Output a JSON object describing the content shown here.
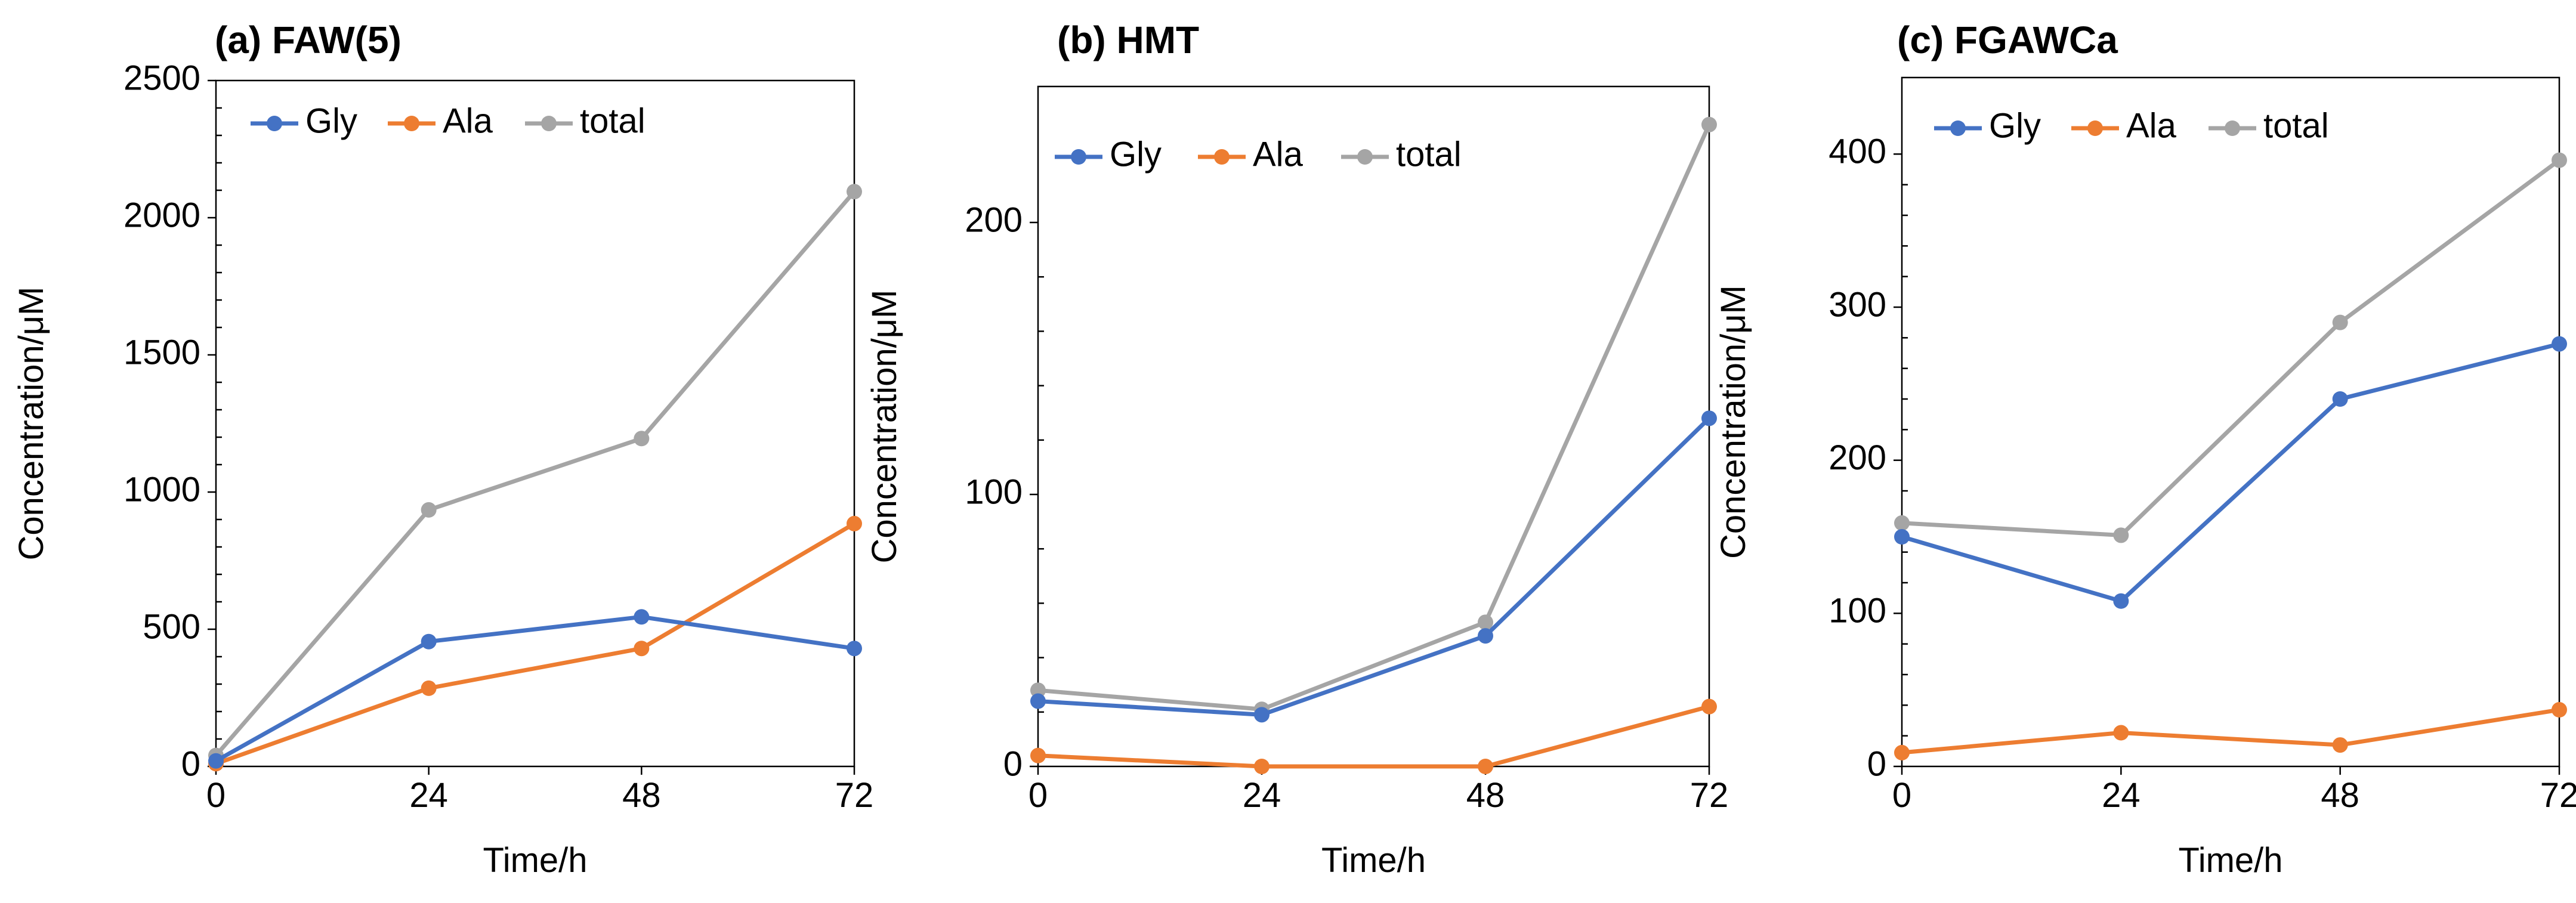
{
  "chart_data": [
    {
      "type": "line",
      "title": "(a) FAW(5)",
      "xlabel": "Time/h",
      "ylabel": "Concentration/μM",
      "x": [
        0,
        24,
        48,
        72
      ],
      "xticks": [
        "0",
        "24",
        "48",
        "72"
      ],
      "xlim": [
        0,
        72
      ],
      "ylim": [
        0,
        2500
      ],
      "yticks": [
        "0",
        "500",
        "1000",
        "1500",
        "2000",
        "2500"
      ],
      "grid": false,
      "legend": "top-left",
      "series": [
        {
          "name": "Gly",
          "color": "#4472C4",
          "values": [
            20,
            455,
            545,
            430
          ]
        },
        {
          "name": "Ala",
          "color": "#ED7D31",
          "values": [
            10,
            285,
            430,
            885
          ]
        },
        {
          "name": "total",
          "color": "#A5A5A5",
          "values": [
            40,
            935,
            1195,
            2095
          ]
        }
      ]
    },
    {
      "type": "line",
      "title": "(b) HMT",
      "xlabel": "Time/h",
      "ylabel": "Concentration/μM",
      "x": [
        0,
        24,
        48,
        72
      ],
      "xticks": [
        "0",
        "24",
        "48",
        "72"
      ],
      "xlim": [
        0,
        72
      ],
      "ylim": [
        0,
        250
      ],
      "yticks": [
        "0",
        "100",
        "200"
      ],
      "grid": false,
      "legend": "top-left",
      "series": [
        {
          "name": "Gly",
          "color": "#4472C4",
          "values": [
            24,
            19,
            48,
            128
          ]
        },
        {
          "name": "Ala",
          "color": "#ED7D31",
          "values": [
            4,
            0,
            0,
            22
          ]
        },
        {
          "name": "total",
          "color": "#A5A5A5",
          "values": [
            28,
            21,
            53,
            236
          ]
        }
      ]
    },
    {
      "type": "line",
      "title": "(c) FGAWCa",
      "xlabel": "Time/h",
      "ylabel": "Concentration/μM",
      "x": [
        0,
        24,
        48,
        72
      ],
      "xticks": [
        "0",
        "24",
        "48",
        "72"
      ],
      "xlim": [
        0,
        72
      ],
      "ylim": [
        0,
        450
      ],
      "yticks": [
        "0",
        "100",
        "200",
        "300",
        "400"
      ],
      "grid": false,
      "legend": "top-left",
      "series": [
        {
          "name": "Gly",
          "color": "#4472C4",
          "values": [
            150,
            108,
            240,
            276
          ]
        },
        {
          "name": "Ala",
          "color": "#ED7D31",
          "values": [
            9,
            22,
            14,
            37
          ]
        },
        {
          "name": "total",
          "color": "#A5A5A5",
          "values": [
            159,
            151,
            290,
            396
          ]
        }
      ]
    }
  ]
}
